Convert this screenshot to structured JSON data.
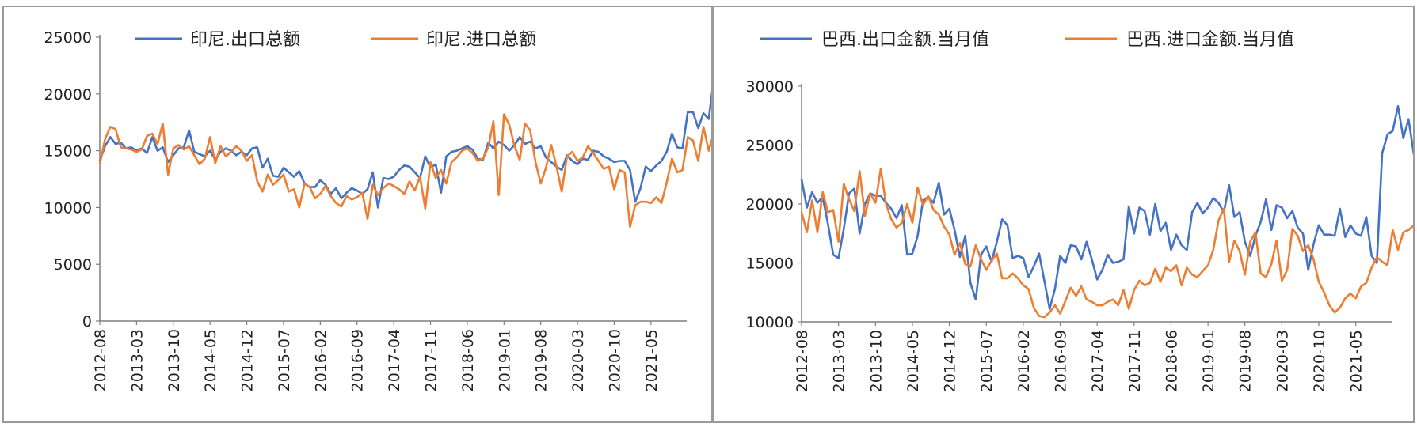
{
  "chart_data": [
    {
      "type": "line",
      "legend": {
        "position": "top"
      },
      "ylim": [
        0,
        25000
      ],
      "yticks": [
        0,
        5000,
        10000,
        15000,
        20000,
        25000
      ],
      "xticks": [
        "2012-08",
        "2013-03",
        "2013-10",
        "2014-05",
        "2014-12",
        "2015-07",
        "2016-02",
        "2016-09",
        "2017-04",
        "2017-11",
        "2018-06",
        "2019-01",
        "2019-08",
        "2020-03",
        "2020-10",
        "2021-05"
      ],
      "x_start": "2012-08",
      "x_end": "2021-10",
      "series": [
        {
          "name": "印尼.出口总额",
          "color": "#4472C4",
          "values": [
            14100,
            15400,
            16200,
            15600,
            15700,
            15200,
            15300,
            15000,
            15200,
            14800,
            16200,
            15000,
            15300,
            14000,
            14600,
            15200,
            15300,
            16800,
            14900,
            14700,
            14500,
            15000,
            14200,
            14900,
            15200,
            15000,
            14600,
            14900,
            14600,
            15200,
            15300,
            13500,
            14300,
            12800,
            12700,
            13500,
            13100,
            12700,
            13200,
            12100,
            11800,
            11800,
            12400,
            12000,
            11200,
            11700,
            10800,
            11300,
            11700,
            11500,
            11200,
            11600,
            13100,
            10000,
            12600,
            12500,
            12700,
            13300,
            13700,
            13600,
            13100,
            12600,
            14500,
            13500,
            13800,
            11300,
            14500,
            14900,
            15000,
            15200,
            15400,
            15100,
            14300,
            14200,
            15700,
            15200,
            15800,
            15500,
            15000,
            15500,
            16200,
            15600,
            15800,
            15200,
            15400,
            14400,
            14000,
            13600,
            13300,
            14600,
            14100,
            13800,
            14300,
            14200,
            15000,
            14900,
            14500,
            14300,
            14000,
            14100,
            14100,
            13300,
            10500,
            11700,
            13600,
            13200,
            13700,
            14100,
            14900,
            16500,
            15300,
            15200,
            18400,
            18400,
            17000,
            18300,
            17800,
            21500
          ]
        },
        {
          "name": "印尼.进口总额",
          "color": "#ED7D31",
          "values": [
            13800,
            16000,
            17100,
            16900,
            15300,
            15200,
            15100,
            14900,
            15100,
            16300,
            16500,
            15600,
            17400,
            12900,
            15200,
            15500,
            15100,
            15400,
            14600,
            13800,
            14300,
            16200,
            13900,
            15400,
            14500,
            14900,
            15400,
            15000,
            14100,
            14600,
            12300,
            11400,
            12900,
            12000,
            12400,
            12900,
            11400,
            11600,
            10000,
            12100,
            11800,
            10800,
            11200,
            11900,
            11000,
            10400,
            10100,
            11000,
            10700,
            10900,
            11300,
            9000,
            12000,
            11100,
            11700,
            12100,
            11900,
            11600,
            11200,
            12300,
            11500,
            12700,
            9900,
            14000,
            12600,
            13300,
            12100,
            14000,
            14400,
            15000,
            15200,
            14800,
            14100,
            14300,
            15300,
            17600,
            11100,
            18200,
            17300,
            15400,
            14200,
            17400,
            16800,
            14000,
            12100,
            13500,
            15500,
            13600,
            11400,
            14500,
            14900,
            14100,
            14400,
            15400,
            14800,
            14100,
            13400,
            13600,
            11600,
            13300,
            13100,
            8300,
            10200,
            10500,
            10500,
            10400,
            10900,
            10400,
            12200,
            14300,
            13100,
            13300,
            16200,
            15900,
            14100,
            17100,
            15000,
            16600
          ]
        }
      ]
    },
    {
      "type": "line",
      "legend": {
        "position": "top"
      },
      "ylim": [
        10000,
        30000
      ],
      "yticks": [
        10000,
        15000,
        20000,
        25000,
        30000
      ],
      "xticks": [
        "2012-08",
        "2013-03",
        "2013-10",
        "2014-05",
        "2014-12",
        "2015-07",
        "2016-02",
        "2016-09",
        "2017-04",
        "2017-11",
        "2018-06",
        "2019-01",
        "2019-08",
        "2020-03",
        "2020-10",
        "2021-05"
      ],
      "x_start": "2012-08",
      "x_end": "2021-10",
      "series": [
        {
          "name": "巴西.出口金额.当月值",
          "color": "#4472C4",
          "values": [
            22100,
            19700,
            21000,
            20100,
            20600,
            18300,
            15700,
            15400,
            17900,
            20900,
            21300,
            17500,
            20000,
            20900,
            20700,
            20700,
            20100,
            19600,
            18800,
            19900,
            15700,
            15800,
            17300,
            20300,
            20600,
            20100,
            21800,
            19100,
            19600,
            17800,
            15500,
            17300,
            13300,
            11900,
            15700,
            16400,
            15100,
            16800,
            18700,
            18200,
            15400,
            15600,
            15400,
            13800,
            14700,
            15800,
            13500,
            11100,
            12800,
            15600,
            15000,
            16500,
            16400,
            15300,
            16800,
            15300,
            13600,
            14400,
            15700,
            15000,
            15100,
            15300,
            19800,
            17500,
            19700,
            19400,
            17400,
            20000,
            17700,
            18400,
            16100,
            17400,
            16500,
            16100,
            19300,
            20100,
            19200,
            19700,
            20500,
            20100,
            19300,
            21600,
            18900,
            19300,
            16800,
            15600,
            17300,
            18500,
            20400,
            17800,
            19900,
            19700,
            18800,
            19400,
            18000,
            17500,
            14400,
            16600,
            18200,
            17400,
            17400,
            17300,
            19600,
            17200,
            18200,
            17500,
            17300,
            18900,
            15600,
            15000,
            24300,
            25900,
            26200,
            28300,
            25600,
            27200,
            24200
          ]
        },
        {
          "name": "巴西.进口金额.当月值",
          "color": "#ED7D31",
          "values": [
            19300,
            17600,
            20300,
            17600,
            21000,
            19300,
            19500,
            16800,
            21700,
            20400,
            19400,
            22800,
            19000,
            20900,
            20100,
            23000,
            20000,
            18700,
            18000,
            18400,
            20000,
            18400,
            21400,
            19900,
            20700,
            19500,
            19100,
            18100,
            17400,
            15700,
            16700,
            14900,
            14700,
            16500,
            15300,
            14400,
            15200,
            15800,
            13700,
            13700,
            14100,
            13700,
            13100,
            12800,
            11200,
            10500,
            10400,
            10800,
            11400,
            10700,
            11800,
            12900,
            12200,
            13000,
            11900,
            11700,
            11400,
            11400,
            11700,
            11900,
            11400,
            12700,
            11100,
            12700,
            13500,
            13100,
            13300,
            14500,
            13400,
            14600,
            14300,
            14800,
            13100,
            14600,
            14000,
            13800,
            14300,
            14800,
            16100,
            18600,
            19600,
            15100,
            16900,
            16000,
            14000,
            16800,
            17600,
            14100,
            13800,
            14900,
            16900,
            13500,
            14400,
            17900,
            17300,
            16000,
            16500,
            15300,
            13400,
            12500,
            11400,
            10800,
            11200,
            12000,
            12400,
            12000,
            13000,
            13300,
            14600,
            15500,
            15100,
            14800,
            17800,
            16100,
            17600,
            17800,
            18200,
            19600,
            20000
          ]
        }
      ]
    }
  ]
}
